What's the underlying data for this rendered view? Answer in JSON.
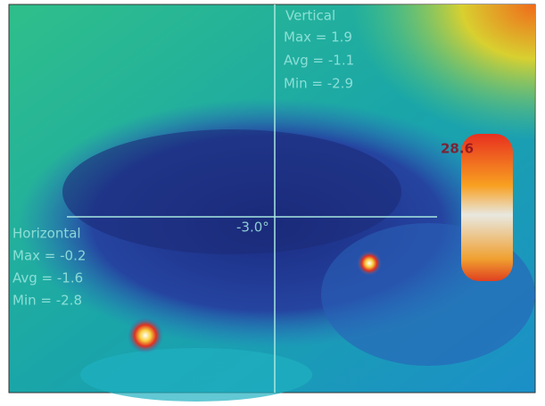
{
  "vertical": {
    "title": "Vertical",
    "max": "Max = 1.9",
    "avg": "Avg = -1.1",
    "min": "Min = -2.9"
  },
  "horizontal": {
    "title": "Horizontal",
    "max": "Max = -0.2",
    "avg": "Avg = -1.6",
    "min": "Min = -2.8"
  },
  "center_reading": "-3.0°",
  "hot_spot_reading": "28.6"
}
